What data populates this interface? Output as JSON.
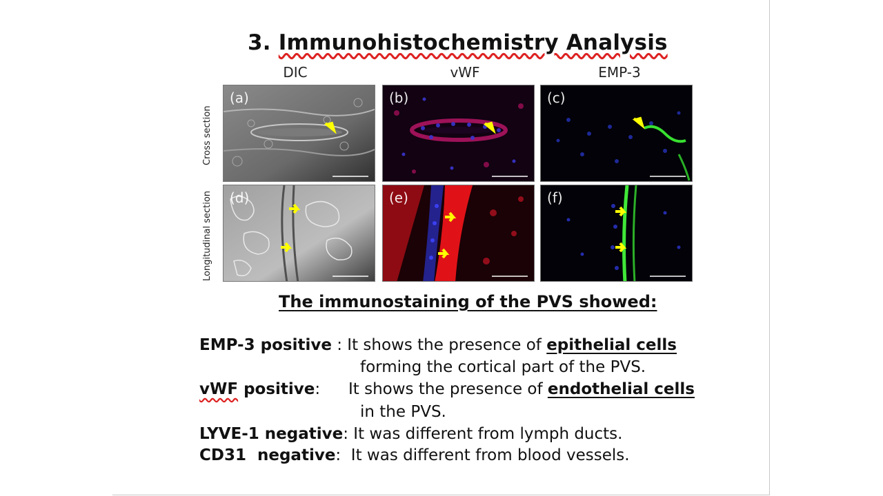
{
  "title": {
    "number": "3.",
    "text": "Immunohistochemistry Analysis"
  },
  "columns": [
    "DIC",
    "vWF",
    "EMP-3"
  ],
  "rows": [
    "Cross section",
    "Longitudinal section"
  ],
  "panels": [
    {
      "letter": "(a)",
      "icon": "dic-cross-section-micrograph"
    },
    {
      "letter": "(b)",
      "icon": "vwf-cross-section-micrograph"
    },
    {
      "letter": "(c)",
      "icon": "emp3-cross-section-micrograph"
    },
    {
      "letter": "(d)",
      "icon": "dic-longitudinal-micrograph"
    },
    {
      "letter": "(e)",
      "icon": "vwf-longitudinal-micrograph"
    },
    {
      "letter": "(f)",
      "icon": "emp3-longitudinal-micrograph"
    }
  ],
  "subtitle": "The immunostaining of the PVS showed:",
  "findings": {
    "emp3": {
      "label": "EMP-3 positive",
      "sep": " : ",
      "text": "It shows the presence of ",
      "highlight": "epithelial cells",
      "cont": "forming the cortical part of the PVS."
    },
    "vwf": {
      "label_a": "vWF",
      "label_b": " positive",
      "sep": ":",
      "text": "It shows the presence of ",
      "highlight": "endothelial cells",
      "cont": "in the PVS."
    },
    "lyve1": {
      "label": "LYVE-1 negative",
      "sep": ": ",
      "text": "It was different from lymph ducts."
    },
    "cd31": {
      "label": "CD31  negative",
      "sep": ":  ",
      "text": "It was different from blood vessels."
    }
  },
  "colors": {
    "arrow": "#ffff00",
    "vwf_stain": "#e0101a",
    "emp3_stain": "#3ee03a",
    "dapi": "#2a3cff",
    "underline_spell": "#dd2222"
  }
}
